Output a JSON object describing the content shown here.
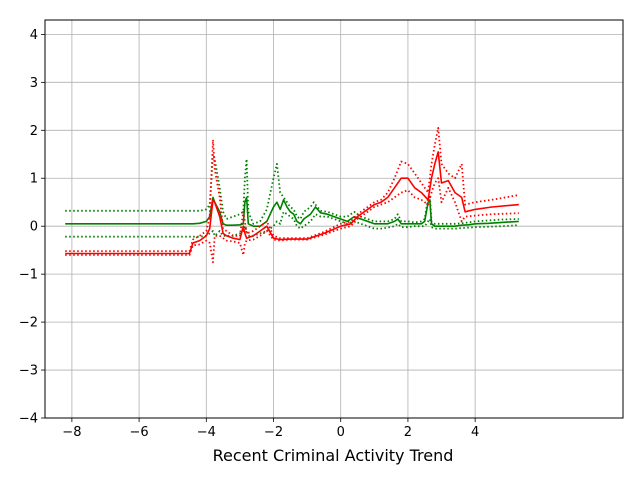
{
  "chart_data": {
    "type": "line",
    "xlabel": "Recent Criminal Activity Trend",
    "ylabel": "",
    "xlim": [
      -8.8,
      8.4
    ],
    "ylim": [
      -4,
      4.3
    ],
    "xticks": [
      -8,
      -6,
      -4,
      -2,
      0,
      2,
      4
    ],
    "yticks": [
      -4,
      -3,
      -2,
      -1,
      0,
      1,
      2,
      3,
      4
    ],
    "grid": true,
    "series": [
      {
        "color": "#008000",
        "style": "solid",
        "x": [
          -8.2,
          -4.4,
          -4.2,
          -4.0,
          -3.9,
          -3.8,
          -3.75,
          -3.6,
          -3.5,
          -3.4,
          -3.2,
          -3.0,
          -2.9,
          -2.85,
          -2.8,
          -2.75,
          -2.6,
          -2.4,
          -2.2,
          -2.0,
          -1.9,
          -1.8,
          -1.7,
          -1.6,
          -1.5,
          -1.4,
          -1.3,
          -1.2,
          -1.1,
          -1.0,
          -0.9,
          -0.8,
          -0.75,
          -0.6,
          -0.4,
          -0.2,
          0.0,
          0.2,
          0.4,
          0.6,
          0.8,
          1.0,
          1.2,
          1.4,
          1.6,
          1.7,
          1.8,
          2.0,
          2.2,
          2.4,
          2.5,
          2.6,
          2.65,
          2.7,
          2.8,
          3.0,
          3.2,
          3.4,
          3.6,
          3.8,
          4.0,
          4.4,
          4.8,
          5.3
        ],
        "y": [
          0.05,
          0.05,
          0.06,
          0.1,
          0.2,
          0.6,
          0.5,
          0.3,
          0.05,
          0.02,
          0.02,
          0.03,
          0.05,
          0.5,
          0.6,
          0.05,
          0.0,
          0.0,
          0.1,
          0.4,
          0.5,
          0.35,
          0.55,
          0.4,
          0.3,
          0.25,
          0.1,
          0.05,
          0.15,
          0.2,
          0.25,
          0.35,
          0.4,
          0.28,
          0.25,
          0.2,
          0.15,
          0.1,
          0.2,
          0.15,
          0.1,
          0.05,
          0.05,
          0.05,
          0.1,
          0.15,
          0.05,
          0.05,
          0.05,
          0.05,
          0.1,
          0.5,
          0.55,
          0.05,
          0.0,
          0.0,
          0.0,
          0.0,
          0.02,
          0.03,
          0.05,
          0.06,
          0.08,
          0.1
        ]
      },
      {
        "color": "#008000",
        "style": "dotted",
        "x": [
          -8.2,
          -4.4,
          -4.2,
          -4.0,
          -3.9,
          -3.8,
          -3.75,
          -3.6,
          -3.5,
          -3.4,
          -3.2,
          -3.0,
          -2.9,
          -2.85,
          -2.8,
          -2.75,
          -2.6,
          -2.4,
          -2.2,
          -2.0,
          -1.9,
          -1.8,
          -1.7,
          -1.6,
          -1.5,
          -1.4,
          -1.3,
          -1.2,
          -1.1,
          -1.0,
          -0.9,
          -0.8,
          -0.75,
          -0.6,
          -0.4,
          -0.2,
          0.0,
          0.2,
          0.4,
          0.6,
          0.8,
          1.0,
          1.2,
          1.4,
          1.6,
          1.7,
          1.8,
          2.0,
          2.2,
          2.4,
          2.5,
          2.6,
          2.65,
          2.7,
          2.8,
          3.0,
          3.2,
          3.4,
          3.6,
          3.8,
          4.0,
          4.4,
          4.8,
          5.3
        ],
        "y": [
          0.32,
          0.32,
          0.32,
          0.35,
          0.45,
          1.5,
          1.4,
          0.8,
          0.3,
          0.15,
          0.2,
          0.25,
          0.3,
          1.0,
          1.4,
          0.3,
          0.05,
          0.1,
          0.35,
          1.0,
          1.3,
          0.7,
          0.6,
          0.5,
          0.4,
          0.35,
          0.2,
          0.15,
          0.3,
          0.35,
          0.4,
          0.5,
          0.45,
          0.32,
          0.3,
          0.25,
          0.2,
          0.2,
          0.3,
          0.2,
          0.15,
          0.1,
          0.1,
          0.1,
          0.15,
          0.25,
          0.1,
          0.1,
          0.08,
          0.1,
          0.15,
          0.6,
          0.65,
          0.1,
          0.05,
          0.05,
          0.05,
          0.05,
          0.06,
          0.08,
          0.1,
          0.12,
          0.14,
          0.15
        ]
      },
      {
        "color": "#008000",
        "style": "dotted",
        "x": [
          -8.2,
          -4.4,
          -4.2,
          -4.0,
          -3.9,
          -3.8,
          -3.75,
          -3.6,
          -3.5,
          -3.4,
          -3.2,
          -3.0,
          -2.9,
          -2.85,
          -2.8,
          -2.75,
          -2.6,
          -2.4,
          -2.2,
          -2.0,
          -1.9,
          -1.8,
          -1.7,
          -1.6,
          -1.5,
          -1.4,
          -1.3,
          -1.2,
          -1.1,
          -1.0,
          -0.9,
          -0.8,
          -0.75,
          -0.6,
          -0.4,
          -0.2,
          0.0,
          0.2,
          0.4,
          0.6,
          0.8,
          1.0,
          1.2,
          1.4,
          1.6,
          1.7,
          1.8,
          2.0,
          2.2,
          2.4,
          2.5,
          2.6,
          2.65,
          2.7,
          2.8,
          3.0,
          3.2,
          3.4,
          3.6,
          3.8,
          4.0,
          4.4,
          4.8,
          5.3
        ],
        "y": [
          -0.22,
          -0.22,
          -0.22,
          -0.2,
          -0.15,
          -0.1,
          -0.2,
          -0.1,
          -0.2,
          -0.2,
          -0.2,
          -0.15,
          -0.1,
          0.0,
          -0.1,
          -0.2,
          -0.2,
          -0.15,
          -0.1,
          0.0,
          0.1,
          0.05,
          0.3,
          0.25,
          0.2,
          0.15,
          0.0,
          -0.05,
          0.0,
          0.05,
          0.1,
          0.2,
          0.25,
          0.2,
          0.2,
          0.15,
          0.1,
          0.05,
          0.1,
          0.05,
          0.0,
          -0.05,
          -0.05,
          -0.03,
          0.0,
          0.05,
          -0.02,
          -0.02,
          0.0,
          0.0,
          0.0,
          0.1,
          0.15,
          -0.02,
          -0.05,
          -0.05,
          -0.05,
          -0.05,
          -0.04,
          -0.03,
          -0.02,
          -0.01,
          0.0,
          0.02
        ]
      },
      {
        "color": "#ff0000",
        "style": "solid",
        "x": [
          -8.2,
          -4.5,
          -4.4,
          -4.2,
          -4.0,
          -3.9,
          -3.8,
          -3.75,
          -3.6,
          -3.5,
          -3.4,
          -3.2,
          -3.0,
          -2.9,
          -2.85,
          -2.8,
          -2.6,
          -2.4,
          -2.2,
          -2.0,
          -1.8,
          -1.5,
          -1.0,
          -0.5,
          0.0,
          0.3,
          0.5,
          0.8,
          1.0,
          1.2,
          1.4,
          1.6,
          1.8,
          2.0,
          2.2,
          2.4,
          2.6,
          2.7,
          2.8,
          2.9,
          3.0,
          3.2,
          3.4,
          3.6,
          3.7,
          4.0,
          4.5,
          5.3
        ],
        "y": [
          -0.57,
          -0.57,
          -0.35,
          -0.3,
          -0.2,
          -0.05,
          0.55,
          0.5,
          0.2,
          -0.15,
          -0.2,
          -0.25,
          -0.28,
          0.0,
          -0.15,
          -0.25,
          -0.2,
          -0.1,
          0.0,
          -0.25,
          -0.28,
          -0.27,
          -0.27,
          -0.15,
          0.0,
          0.05,
          0.2,
          0.35,
          0.45,
          0.5,
          0.6,
          0.8,
          1.0,
          1.0,
          0.8,
          0.7,
          0.55,
          1.0,
          1.3,
          1.55,
          0.9,
          0.95,
          0.7,
          0.6,
          0.3,
          0.35,
          0.4,
          0.45
        ]
      },
      {
        "color": "#ff0000",
        "style": "dotted",
        "x": [
          -8.2,
          -4.5,
          -4.4,
          -4.2,
          -4.0,
          -3.9,
          -3.8,
          -3.75,
          -3.6,
          -3.5,
          -3.4,
          -3.2,
          -3.0,
          -2.9,
          -2.85,
          -2.8,
          -2.6,
          -2.4,
          -2.2,
          -2.0,
          -1.8,
          -1.5,
          -1.0,
          -0.5,
          0.0,
          0.3,
          0.5,
          0.8,
          1.0,
          1.2,
          1.4,
          1.6,
          1.8,
          2.0,
          2.2,
          2.4,
          2.6,
          2.7,
          2.8,
          2.9,
          3.0,
          3.2,
          3.4,
          3.6,
          3.7,
          4.0,
          4.5,
          5.3
        ],
        "y": [
          -0.52,
          -0.52,
          -0.28,
          -0.2,
          -0.1,
          0.2,
          1.8,
          1.2,
          0.6,
          -0.05,
          -0.1,
          -0.2,
          -0.2,
          0.3,
          0.1,
          -0.15,
          -0.1,
          0.0,
          0.1,
          -0.2,
          -0.25,
          -0.25,
          -0.25,
          -0.12,
          0.05,
          0.1,
          0.25,
          0.4,
          0.5,
          0.55,
          0.7,
          1.0,
          1.35,
          1.3,
          1.1,
          0.9,
          0.7,
          1.3,
          1.7,
          2.05,
          1.3,
          1.1,
          1.0,
          1.3,
          0.45,
          0.5,
          0.55,
          0.65
        ]
      },
      {
        "color": "#ff0000",
        "style": "dotted",
        "x": [
          -8.2,
          -4.5,
          -4.4,
          -4.2,
          -4.0,
          -3.9,
          -3.8,
          -3.75,
          -3.6,
          -3.5,
          -3.4,
          -3.2,
          -3.0,
          -2.9,
          -2.85,
          -2.8,
          -2.6,
          -2.4,
          -2.2,
          -2.0,
          -1.8,
          -1.5,
          -1.0,
          -0.5,
          0.0,
          0.3,
          0.5,
          0.8,
          1.0,
          1.2,
          1.4,
          1.6,
          1.8,
          2.0,
          2.2,
          2.4,
          2.6,
          2.7,
          2.8,
          2.9,
          3.0,
          3.2,
          3.4,
          3.6,
          3.7,
          4.0,
          4.5,
          5.3
        ],
        "y": [
          -0.6,
          -0.6,
          -0.4,
          -0.38,
          -0.3,
          -0.35,
          -0.75,
          -0.2,
          -0.2,
          -0.25,
          -0.3,
          -0.32,
          -0.35,
          -0.6,
          -0.35,
          -0.3,
          -0.28,
          -0.2,
          -0.1,
          -0.28,
          -0.3,
          -0.28,
          -0.28,
          -0.18,
          -0.05,
          0.0,
          0.15,
          0.3,
          0.4,
          0.45,
          0.5,
          0.6,
          0.7,
          0.75,
          0.6,
          0.55,
          0.45,
          0.7,
          0.9,
          1.0,
          0.5,
          0.8,
          0.5,
          0.1,
          0.2,
          0.22,
          0.25,
          0.27
        ]
      }
    ]
  }
}
